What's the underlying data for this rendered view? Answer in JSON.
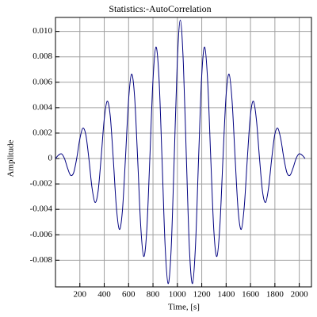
{
  "chart_data": {
    "type": "line",
    "title": "Statistics:-AutoCorrelation",
    "x_label": "Time, [s]",
    "y_label": "Amplitude",
    "xlim": [
      0,
      2100
    ],
    "ylim": [
      -0.0101,
      0.0111
    ],
    "xticks": [
      200,
      400,
      600,
      800,
      1000,
      1200,
      1400,
      1600,
      1800,
      2000
    ],
    "yticks": [
      -0.008,
      -0.006,
      -0.004,
      -0.002,
      0,
      0.002,
      0.004,
      0.006,
      0.008,
      {
        "value": 0.01,
        "label": "0.010"
      }
    ],
    "grid": true,
    "x": [
      0,
      24,
      49,
      74,
      99,
      124,
      149,
      174,
      199,
      224,
      249,
      274,
      299,
      324,
      349,
      374,
      399,
      424,
      449,
      474,
      499,
      524,
      549,
      574,
      599,
      624,
      649,
      674,
      699,
      724,
      749,
      774,
      799,
      824,
      849,
      874,
      899,
      924,
      949,
      974,
      999,
      1024,
      1049,
      1074,
      1099,
      1124,
      1149,
      1174,
      1199,
      1224,
      1249,
      1274,
      1299,
      1324,
      1349,
      1374,
      1399,
      1424,
      1449,
      1474,
      1499,
      1524,
      1549,
      1574,
      1599,
      1624,
      1649,
      1674,
      1699,
      1724,
      1749,
      1774,
      1799,
      1824,
      1849,
      1874,
      1899,
      1924,
      1949,
      1974,
      1999,
      2024,
      2048
    ],
    "series": [
      {
        "color": "#000080",
        "values": [
          0,
          0.00026,
          0.00037,
          0,
          -0.00075,
          -0.00132,
          -0.00112,
          0,
          0.0015,
          0.00238,
          0.00187,
          0,
          -0.00225,
          -0.00345,
          -0.00263,
          0,
          0.003,
          0.00451,
          0.00338,
          0,
          -0.00376,
          -0.00558,
          -0.00413,
          0,
          0.00451,
          0.00664,
          0.00488,
          0,
          -0.00526,
          -0.00771,
          -0.00564,
          0,
          0.00601,
          0.00877,
          0.00639,
          0,
          -0.00677,
          -0.00984,
          -0.00714,
          0,
          0.00752,
          0.0109,
          0.00752,
          0,
          -0.00714,
          -0.00984,
          -0.00677,
          0,
          0.00639,
          0.00877,
          0.00601,
          0,
          -0.00564,
          -0.00771,
          -0.00526,
          0,
          0.00488,
          0.00664,
          0.00451,
          0,
          -0.00413,
          -0.00558,
          -0.00376,
          0,
          0.00338,
          0.00451,
          0.003,
          0,
          -0.00263,
          -0.00345,
          -0.00225,
          0,
          0.00187,
          0.00238,
          0.0015,
          0,
          -0.00112,
          -0.00132,
          -0.00075,
          0,
          0.00037,
          0.00026,
          0
        ]
      }
    ]
  }
}
